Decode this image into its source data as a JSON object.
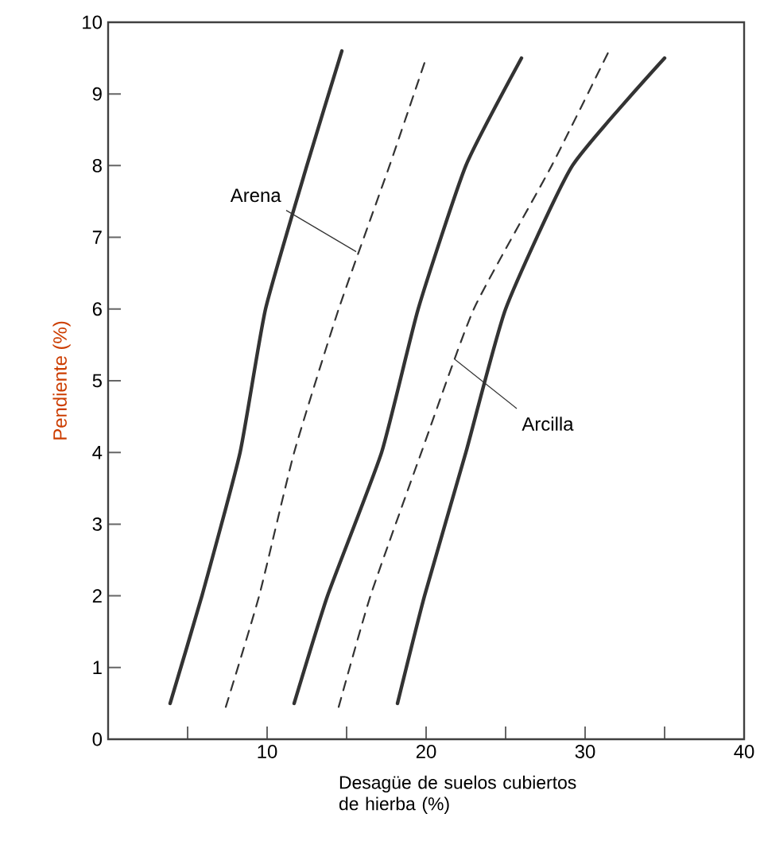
{
  "chart_data": {
    "type": "line",
    "xlabel": "Desagüe de suelos cubiertos de hierba (%)",
    "ylabel": "Pendiente (%)",
    "xlim": [
      0,
      40
    ],
    "ylim": [
      0,
      10
    ],
    "xticks": [
      {
        "value": 5,
        "label": null
      },
      10,
      {
        "value": 15,
        "label": null
      },
      20,
      {
        "value": 25,
        "label": null
      },
      30,
      {
        "value": 35,
        "label": null
      },
      40
    ],
    "yticks": [
      0,
      1,
      2,
      3,
      4,
      5,
      6,
      7,
      8,
      9,
      10
    ],
    "grid": false,
    "marker": "none",
    "series": [
      {
        "color": "#333333",
        "line_style": "solid",
        "x": [
          3.9,
          5.9,
          8.3,
          9.9,
          12.5,
          14.7
        ],
        "values": [
          0.5,
          2,
          4,
          6,
          8,
          9.6
        ]
      },
      {
        "color": "#333333",
        "line_style": "dashed",
        "x": [
          7.4,
          9.5,
          11.7,
          14.5,
          17.7,
          20
        ],
        "values": [
          0.45,
          2,
          4,
          6,
          8,
          9.5
        ]
      },
      {
        "color": "#333333",
        "line_style": "solid",
        "x": [
          11.7,
          13.8,
          17.2,
          19.5,
          22.5,
          26
        ],
        "values": [
          0.5,
          2,
          4,
          6,
          8,
          9.5
        ]
      },
      {
        "color": "#333333",
        "line_style": "dashed",
        "x": [
          14.5,
          16.5,
          19.7,
          23,
          27.9,
          31.5
        ],
        "values": [
          0.45,
          2,
          4,
          6,
          8,
          9.6
        ]
      },
      {
        "color": "#333333",
        "line_style": "solid",
        "x": [
          18.2,
          19.9,
          22.5,
          25,
          29.2,
          35
        ],
        "values": [
          0.5,
          2,
          4,
          6,
          8,
          9.5
        ]
      }
    ],
    "annotations": [
      {
        "text": "Arena",
        "x": 15.6,
        "y": 6.8
      },
      {
        "text": "Arcilla",
        "x": 21.8,
        "y": 5.3
      }
    ]
  }
}
